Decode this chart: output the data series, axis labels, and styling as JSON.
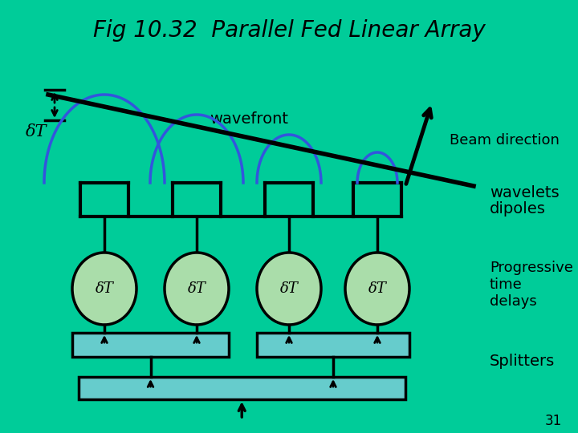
{
  "background_color": "#00CC99",
  "title": "Fig 10.32  Parallel Fed Linear Array",
  "title_fontsize": 20,
  "title_color": "black",
  "wavefront_label": "wavefront",
  "beam_direction_label": "Beam direction",
  "wavelets_label": "wavelets",
  "dipoles_label": "dipoles",
  "dt_label": "δT",
  "progressive_label": "Progressive\ntime\ndelays",
  "splitters_label": "Splitters",
  "page_number": "31",
  "blue_color": "#3355DD",
  "light_green": "#AADDAA",
  "teal_box": "#66CCCC",
  "black": "black"
}
